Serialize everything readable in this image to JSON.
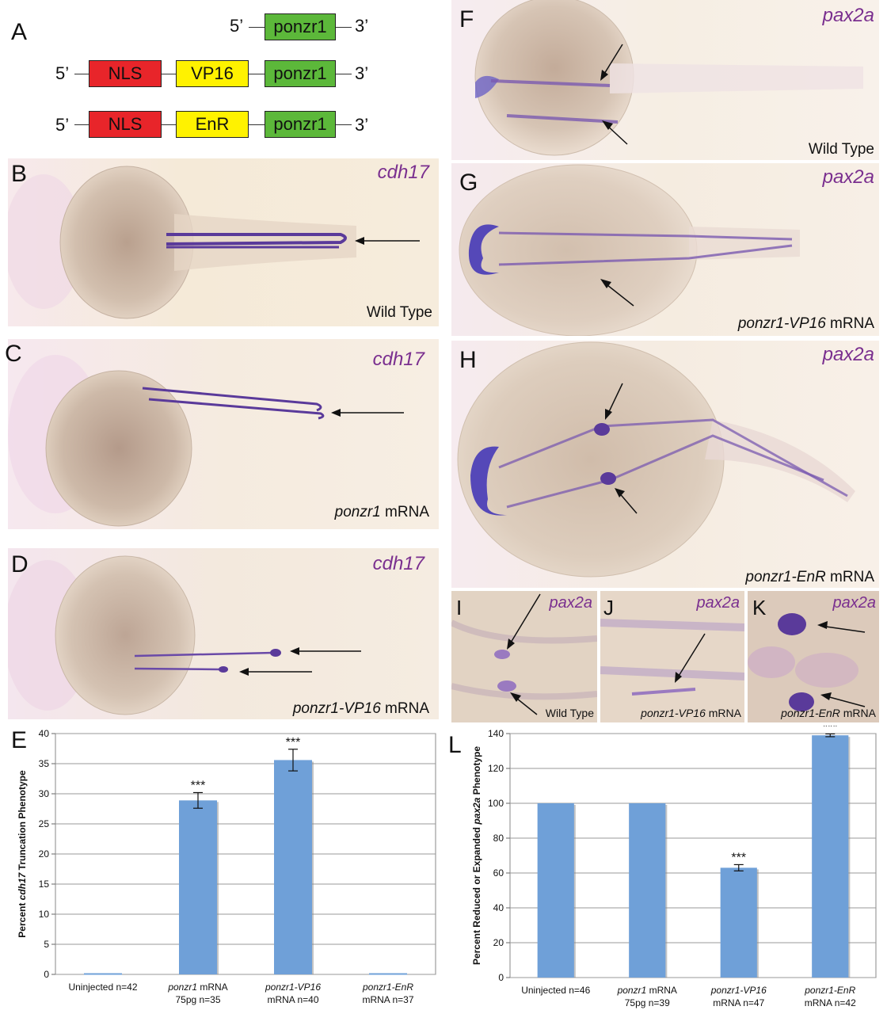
{
  "panels": {
    "A": "A",
    "B": "B",
    "C": "C",
    "D": "D",
    "E": "E",
    "F": "F",
    "G": "G",
    "H": "H",
    "I": "I",
    "J": "J",
    "K": "K",
    "L": "L"
  },
  "constructs": {
    "five_prime": "5’",
    "three_prime": "3’",
    "row1": [
      "ponzr1"
    ],
    "row2": [
      "NLS",
      "VP16",
      "ponzr1"
    ],
    "row3": [
      "NLS",
      "EnR",
      "ponzr1"
    ],
    "colors": {
      "NLS": "#e8252a",
      "VP16": "#fff200",
      "EnR": "#fff200",
      "ponzr1": "#5cb83a"
    }
  },
  "images": {
    "B": {
      "gene": "cdh17",
      "condition": "Wild Type"
    },
    "C": {
      "gene": "cdh17",
      "condition_italic": "ponzr1",
      "condition_rest": " mRNA"
    },
    "D": {
      "gene": "cdh17",
      "condition_italic": "ponzr1-VP16",
      "condition_rest": " mRNA"
    },
    "F": {
      "gene": "pax2a",
      "condition": "Wild Type"
    },
    "G": {
      "gene": "pax2a",
      "condition_italic": "ponzr1-VP16",
      "condition_rest": " mRNA"
    },
    "H": {
      "gene": "pax2a",
      "condition_italic": "ponzr1-EnR",
      "condition_rest": " mRNA"
    },
    "I": {
      "gene": "pax2a",
      "condition": "Wild Type"
    },
    "J": {
      "gene": "pax2a",
      "condition_italic": "ponzr1-VP16",
      "condition_rest": " mRNA"
    },
    "K": {
      "gene": "pax2a",
      "condition_italic": "ponzr1-EnR",
      "condition_rest": " mRNA"
    }
  },
  "chart_data": [
    {
      "type": "bar",
      "panel": "E",
      "ylabel_pre": "Percent ",
      "ylabel_italic": "cdh17",
      "ylabel_post": " Truncation Phenotype",
      "ylim": [
        0,
        40
      ],
      "yticks": [
        "0",
        "5",
        "10",
        "15",
        "20",
        "25",
        "30",
        "35",
        "40"
      ],
      "grid": true,
      "categories": [
        {
          "line1_italic": "",
          "line1_rest": "Uninjected n=42",
          "line2": ""
        },
        {
          "line1_italic": "ponzr1",
          "line1_rest": " mRNA",
          "line2": "75pg n=35"
        },
        {
          "line1_italic": "ponzr1-VP16",
          "line1_rest": "",
          "line2": "mRNA n=40"
        },
        {
          "line1_italic": "ponzr1-EnR",
          "line1_rest": "",
          "line2": "mRNA n=37"
        }
      ],
      "values": [
        0,
        28.9,
        35.6,
        0
      ],
      "errors": [
        0,
        1.3,
        1.8,
        0
      ],
      "significance": [
        "",
        "***",
        "***",
        ""
      ],
      "bar_color": "#6fa0d8"
    },
    {
      "type": "bar",
      "panel": "L",
      "ylabel_pre": "Percent Reduced or Expanded ",
      "ylabel_italic": "pax2a",
      "ylabel_post": " Phenotype",
      "ylim": [
        0,
        140
      ],
      "yticks": [
        "0",
        "20",
        "40",
        "60",
        "80",
        "100",
        "120",
        "140"
      ],
      "grid": true,
      "categories": [
        {
          "line1_italic": "",
          "line1_rest": "Uninjected n=46",
          "line2": ""
        },
        {
          "line1_italic": "ponzr1",
          "line1_rest": " mRNA",
          "line2": "75pg n=39"
        },
        {
          "line1_italic": "ponzr1-VP16",
          "line1_rest": "",
          "line2": "mRNA n=47"
        },
        {
          "line1_italic": "ponzr1-EnR",
          "line1_rest": "",
          "line2": "mRNA n=42"
        }
      ],
      "values": [
        100,
        100,
        63,
        139
      ],
      "errors": [
        0,
        0,
        1.8,
        0.8
      ],
      "significance": [
        "",
        "",
        "***",
        "***"
      ],
      "bar_color": "#6fa0d8"
    }
  ]
}
